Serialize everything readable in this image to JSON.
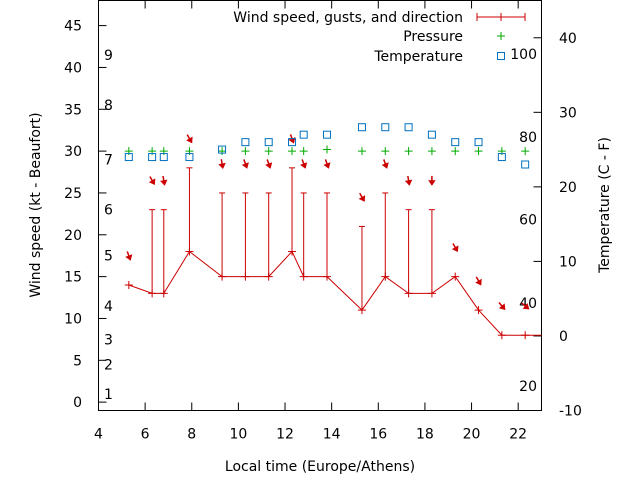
{
  "chart_data": {
    "type": "line",
    "xlabel": "Local time (Europe/Athens)",
    "ylabel": "Wind speed (kt - Beaufort)",
    "y2label": "Temperature (C - F)",
    "xlim": [
      4,
      23
    ],
    "ylim": [
      -1,
      48
    ],
    "y2lim": [
      -10,
      45
    ],
    "grid": false,
    "legend_position": "top-right",
    "x_ticks": [
      4,
      6,
      8,
      10,
      12,
      14,
      16,
      18,
      20,
      22
    ],
    "y_ticks": [
      0,
      5,
      10,
      15,
      20,
      25,
      30,
      35,
      40,
      45
    ],
    "y2_ticks": [
      -10,
      0,
      10,
      20,
      30,
      40
    ],
    "beaufort_labels": [
      {
        "label": "1",
        "y": 1
      },
      {
        "label": "2",
        "y": 4.5
      },
      {
        "label": "3",
        "y": 7.5
      },
      {
        "label": "4",
        "y": 11.5
      },
      {
        "label": "5",
        "y": 17.5
      },
      {
        "label": "6",
        "y": 23
      },
      {
        "label": "7",
        "y": 29
      },
      {
        "label": "8",
        "y": 35.5
      },
      {
        "label": "9",
        "y": 41.5
      }
    ],
    "fahrenheit_labels": [
      {
        "label": "20",
        "y2": -6.7
      },
      {
        "label": "40",
        "y2": 4.4
      },
      {
        "label": "60",
        "y2": 15.6
      },
      {
        "label": "80",
        "y2": 26.7
      },
      {
        "label": "100",
        "y2": 37.8
      }
    ],
    "series": [
      {
        "name": "Wind speed, gusts, and direction",
        "color": "#cc0000",
        "x": [
          5.3,
          6.3,
          6.8,
          7.9,
          9.3,
          10.3,
          11.3,
          12.3,
          12.8,
          13.8,
          15.3,
          16.3,
          17.3,
          18.3,
          19.3,
          20.3,
          21.3,
          22.3
        ],
        "values": [
          14,
          13,
          13,
          18,
          15,
          15,
          15,
          18,
          15,
          15,
          11,
          15,
          13,
          13,
          15,
          11,
          8,
          8
        ],
        "gusts": [
          null,
          23,
          23,
          28,
          25,
          25,
          25,
          28,
          25,
          25,
          21,
          25,
          23,
          23,
          null,
          null,
          null,
          null
        ],
        "directions": [
          340,
          330,
          350,
          330,
          350,
          340,
          340,
          340,
          340,
          340,
          330,
          340,
          350,
          360,
          330,
          330,
          320,
          310
        ],
        "arrow_y": [
          17.5,
          26.5,
          26.5,
          31.5,
          28.5,
          28.5,
          28.5,
          31.5,
          28.5,
          28.5,
          24.5,
          28.5,
          26.5,
          26.5,
          18.5,
          14.5,
          11.5,
          11.5
        ],
        "tail_end": 23
      },
      {
        "name": "Pressure",
        "color": "#00aa00",
        "x": [
          5.3,
          6.3,
          6.8,
          7.9,
          9.3,
          10.3,
          11.3,
          12.3,
          12.8,
          13.8,
          15.3,
          16.3,
          17.3,
          18.3,
          19.3,
          20.3,
          21.3,
          22.3
        ],
        "values": [
          30,
          30,
          30,
          30,
          30,
          30,
          30,
          30,
          30,
          30.2,
          30,
          30,
          30,
          30,
          30,
          30,
          30,
          30
        ]
      },
      {
        "name": "Temperature",
        "color": "#0070c0",
        "axis": "y2",
        "x": [
          5.3,
          6.3,
          6.8,
          7.9,
          9.3,
          10.3,
          11.3,
          12.3,
          12.8,
          13.8,
          15.3,
          16.3,
          17.3,
          18.3,
          19.3,
          20.3,
          21.3,
          22.3
        ],
        "values": [
          24,
          24,
          24,
          24,
          25,
          26,
          26,
          26,
          27,
          27,
          28,
          28,
          28,
          27,
          26,
          26,
          24,
          23
        ]
      }
    ]
  }
}
